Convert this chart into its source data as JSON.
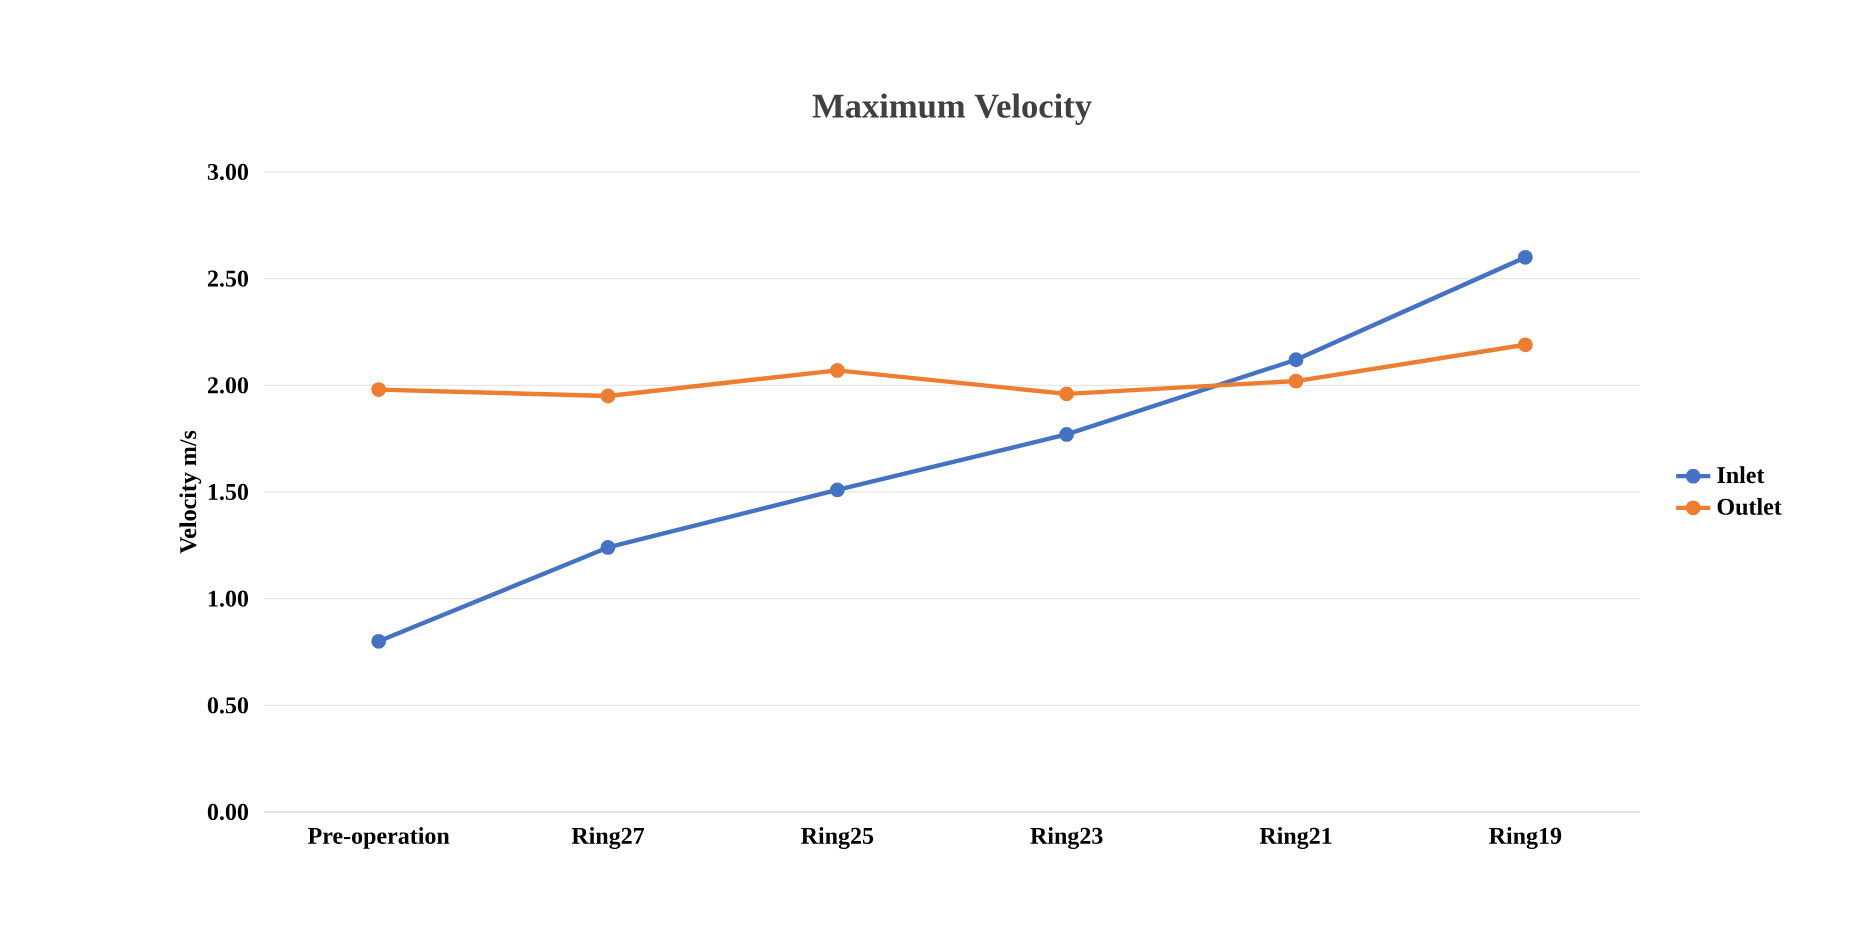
{
  "chart_data": {
    "type": "line",
    "title": "Maximum Velocity",
    "ylabel": "Velocity m/s",
    "categories": [
      "Pre-operation",
      "Ring27",
      "Ring25",
      "Ring23",
      "Ring21",
      "Ring19"
    ],
    "series": [
      {
        "name": "Inlet",
        "color": "#4472c4",
        "values": [
          0.8,
          1.24,
          1.51,
          1.77,
          2.12,
          2.6
        ]
      },
      {
        "name": "Outlet",
        "color": "#ed7d31",
        "values": [
          1.98,
          1.95,
          2.07,
          1.96,
          2.02,
          2.19
        ]
      }
    ],
    "ylim": [
      0,
      3
    ],
    "yticks": [
      {
        "value": 0,
        "label": "0.00"
      },
      {
        "value": 0.5,
        "label": "0.50"
      },
      {
        "value": 1,
        "label": "1.00"
      },
      {
        "value": 1.5,
        "label": "1.50"
      },
      {
        "value": 2,
        "label": "2.00"
      },
      {
        "value": 2.5,
        "label": "2.50"
      },
      {
        "value": 3,
        "label": "3.00"
      }
    ],
    "grid": "y",
    "legend": "right",
    "marker": "circle",
    "line_style": "solid"
  }
}
